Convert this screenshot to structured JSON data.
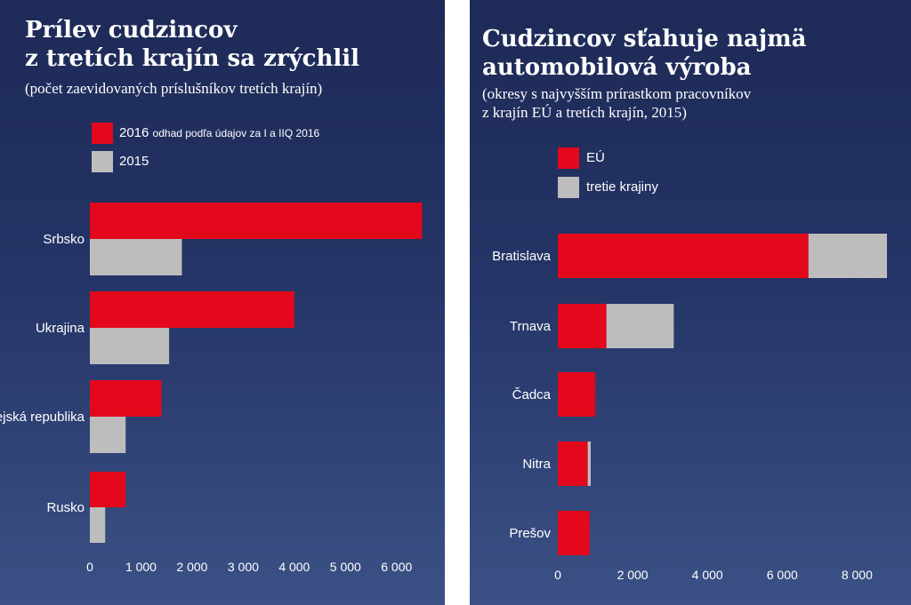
{
  "colors": {
    "red": "#e3081b",
    "gray": "#bdbdbd",
    "background_top": "#1e2a57",
    "background_bottom": "#3b5185",
    "text": "#ffffff"
  },
  "chart_data": [
    {
      "type": "bar",
      "orientation": "horizontal",
      "title_line1": "Prílev cudzincov",
      "title_line2": "z tretích krajín sa zrýchlil",
      "subtitle": "(počet zaevidovaných príslušníkov tretích krajín)",
      "legend": [
        {
          "label": "2016",
          "note": "odhad podľa údajov za I a IIQ 2016",
          "color": "#e3081b"
        },
        {
          "label": "2015",
          "note": "",
          "color": "#bdbdbd"
        }
      ],
      "legend_position": "top",
      "categories": [
        "Srbsko",
        "Ukrajina",
        "Kórejská republika",
        "Rusko"
      ],
      "series": [
        {
          "name": "2016",
          "values": [
            6500,
            4000,
            1400,
            700
          ]
        },
        {
          "name": "2015",
          "values": [
            1800,
            1550,
            700,
            300
          ]
        }
      ],
      "xlim": [
        0,
        6500
      ],
      "xticks": [
        0,
        1000,
        2000,
        3000,
        4000,
        5000,
        6000
      ],
      "xtick_labels": [
        "0",
        "1 000",
        "2 000",
        "3 000",
        "4 000",
        "5 000",
        "6 000"
      ],
      "grid": false
    },
    {
      "type": "bar",
      "orientation": "horizontal",
      "stacked": true,
      "title_line1": "Cudzincov sťahuje najmä",
      "title_line2": "automobilová výroba",
      "subtitle_line1": "(okresy s najvyšším prírastkom pracovníkov",
      "subtitle_line2": "z krajín EÚ a tretích krajín, 2015)",
      "legend": [
        {
          "label": "EÚ",
          "color": "#e3081b"
        },
        {
          "label": "tretie krajiny",
          "color": "#bdbdbd"
        }
      ],
      "legend_position": "top",
      "categories": [
        "Bratislava",
        "Trnava",
        "Čadca",
        "Nitra",
        "Prešov"
      ],
      "series": [
        {
          "name": "EÚ",
          "values": [
            6700,
            1300,
            1000,
            800,
            850
          ]
        },
        {
          "name": "tretie krajiny",
          "values": [
            2100,
            1800,
            0,
            80,
            0
          ]
        }
      ],
      "xlim": [
        0,
        8800
      ],
      "xticks": [
        0,
        2000,
        4000,
        6000,
        8000
      ],
      "xtick_labels": [
        "0",
        "2 000",
        "4 000",
        "6 000",
        "8 000"
      ],
      "grid": false
    }
  ]
}
